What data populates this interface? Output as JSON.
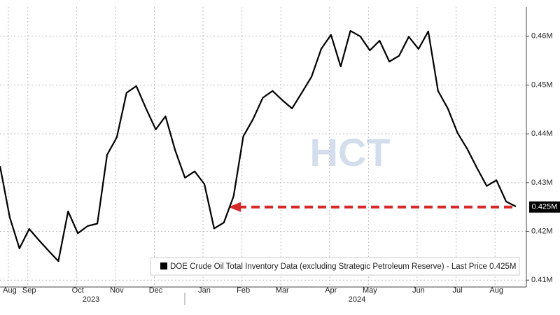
{
  "chart_data": {
    "type": "line",
    "watermark": "HCT",
    "categories": [
      null,
      "Aug",
      null,
      "Sep",
      null,
      null,
      null,
      null,
      "Oct",
      null,
      null,
      null,
      "Nov",
      null,
      null,
      null,
      "Dec",
      null,
      null,
      null,
      null,
      "Jan",
      null,
      null,
      null,
      "Feb",
      null,
      null,
      null,
      "Mar",
      null,
      null,
      null,
      null,
      "Apr",
      null,
      null,
      null,
      "May",
      null,
      null,
      null,
      null,
      "Jun",
      null,
      null,
      null,
      "Jul",
      null,
      null,
      null,
      "Aug",
      null,
      null
    ],
    "years": [
      "2023",
      "2024"
    ],
    "series": [
      {
        "name": "DOE Crude Oil Total Inventory Data (excluding Strategic Petroleum Reserve) - Last Price 0.425M",
        "color": "#000000",
        "values": [
          0.4334,
          0.4229,
          0.4165,
          0.4205,
          0.4182,
          0.416,
          0.4139,
          0.4241,
          0.4196,
          0.4211,
          0.4216,
          0.4357,
          0.4393,
          0.4484,
          0.4498,
          0.4452,
          0.4409,
          0.4436,
          0.4366,
          0.431,
          0.4323,
          0.4297,
          0.4206,
          0.4218,
          0.4272,
          0.4395,
          0.443,
          0.4474,
          0.4488,
          0.4469,
          0.4452,
          0.4484,
          0.4517,
          0.4574,
          0.4603,
          0.4538,
          0.4611,
          0.46,
          0.4571,
          0.4591,
          0.4548,
          0.456,
          0.4599,
          0.4574,
          0.461,
          0.4488,
          0.4452,
          0.4402,
          0.4369,
          0.433,
          0.4293,
          0.4305,
          0.4261,
          0.4251
        ]
      }
    ],
    "last_price": {
      "value": 0.425,
      "label": "0.425M"
    },
    "arrow_color": "#d42a2a",
    "ylim": [
      0.4086,
      0.466
    ],
    "yticks": [
      {
        "value": 0.41,
        "label": "0.41M"
      },
      {
        "value": 0.42,
        "label": "0.42M"
      },
      {
        "value": 0.43,
        "label": "0.43M"
      },
      {
        "value": 0.44,
        "label": "0.44M"
      },
      {
        "value": 0.45,
        "label": "0.45M"
      },
      {
        "value": 0.46,
        "label": "0.46M"
      }
    ],
    "grid": true
  }
}
